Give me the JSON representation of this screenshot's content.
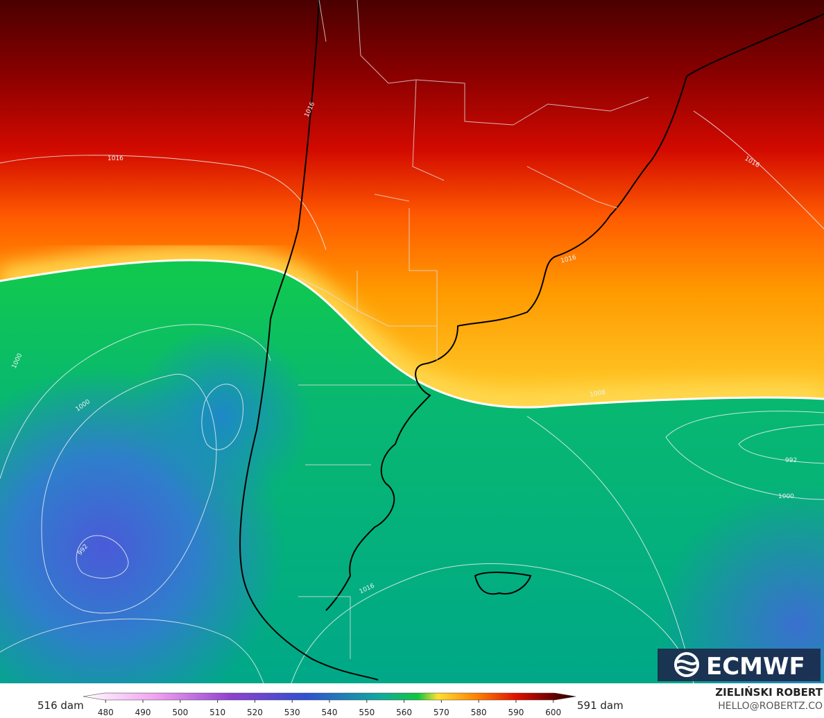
{
  "map": {
    "contour_labels": [
      "1016",
      "1016",
      "1016",
      "1016",
      "1016",
      "1000",
      "1000",
      "1000",
      "992",
      "992",
      "1008"
    ]
  },
  "logo": "ECMWF",
  "colorbar": {
    "min_label": "516 dam",
    "max_label": "591 dam",
    "ticks": [
      480,
      490,
      500,
      510,
      520,
      530,
      540,
      550,
      560,
      570,
      580,
      590,
      600
    ],
    "range": [
      474,
      606
    ]
  },
  "credit": {
    "author": "ZIELIŃSKI ROBERT",
    "contact": "HELLO@ROBERTZ.CO"
  }
}
